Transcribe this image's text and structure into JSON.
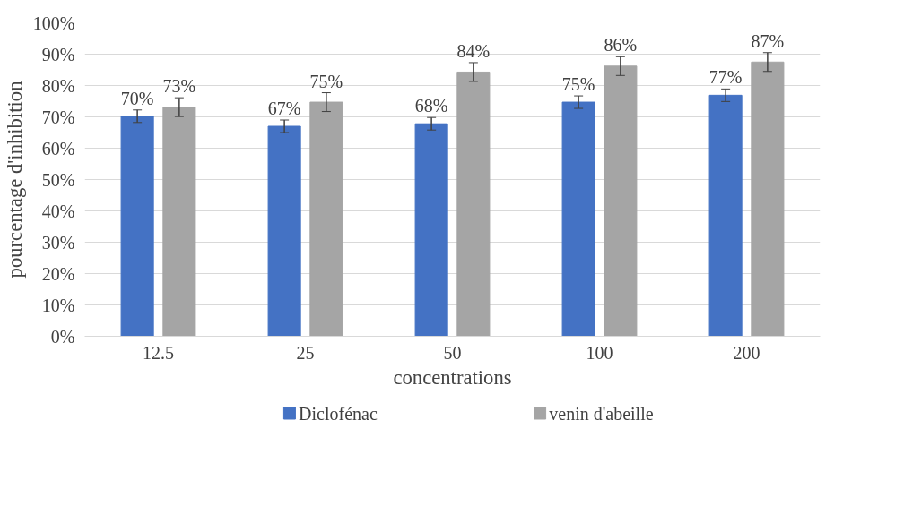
{
  "chart_data": {
    "type": "bar",
    "xlabel": "concentrations",
    "ylabel": "pourcentage d'inhibition",
    "categories": [
      "12.5",
      "25",
      "50",
      "100",
      "200"
    ],
    "series": [
      {
        "name": "Diclofénac",
        "color": "#4472c4",
        "values": [
          70.2,
          67.0,
          67.8,
          74.7,
          76.9
        ],
        "errors": [
          2,
          2,
          2,
          2,
          2
        ],
        "value_labels": [
          "70%",
          "67%",
          "68%",
          "75%",
          "77%"
        ]
      },
      {
        "name": "venin d'abeille",
        "color": "#a5a5a5",
        "values": [
          73.1,
          74.7,
          84.3,
          86.2,
          87.5
        ],
        "errors": [
          3,
          3,
          3,
          3,
          3
        ],
        "value_labels": [
          "73%",
          "75%",
          "84%",
          "86%",
          "87%"
        ]
      }
    ],
    "ylim": [
      0,
      100
    ],
    "yticks": [
      {
        "value": 0,
        "label": "0%"
      },
      {
        "value": 10,
        "label": "10%"
      },
      {
        "value": 20,
        "label": "20%"
      },
      {
        "value": 30,
        "label": "30%"
      },
      {
        "value": 40,
        "label": "40%"
      },
      {
        "value": 50,
        "label": "50%"
      },
      {
        "value": 60,
        "label": "60%"
      },
      {
        "value": 70,
        "label": "70%"
      },
      {
        "value": 80,
        "label": "80%"
      },
      {
        "value": 90,
        "label": "90%"
      },
      {
        "value": 100,
        "label": "100%"
      }
    ],
    "grid": "y",
    "legend": "bottom"
  }
}
